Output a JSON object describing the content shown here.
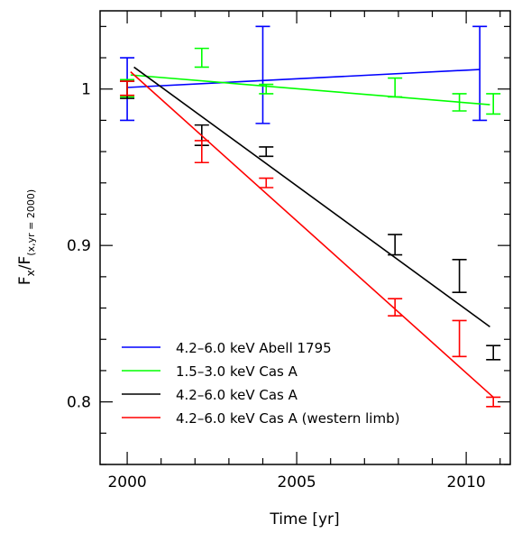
{
  "chart_data": {
    "type": "line",
    "xlabel": "Time [yr]",
    "ylabel_main": "F",
    "ylabel_sub1": "x",
    "ylabel_mid": "/F",
    "ylabel_sub2": "(x,yr = 2000)",
    "xlim": [
      1999.2,
      2011.3
    ],
    "ylim": [
      0.76,
      1.05
    ],
    "x_ticks": [
      2000,
      2005,
      2010
    ],
    "x_tick_labels": [
      "2000",
      "2005",
      "2010"
    ],
    "x_minor_step": 1,
    "y_ticks": [
      0.8,
      0.9,
      1.0
    ],
    "y_tick_labels": [
      "0.8",
      "0.9",
      "1"
    ],
    "y_minor_step": 0.02,
    "grid": false,
    "legend_position": "bottom-left",
    "series": [
      {
        "name": "4.2–6.0 keV Abell 1795",
        "color": "#0000ff",
        "points": [
          {
            "x": 2000.0,
            "y": 1.0,
            "lo": 0.98,
            "hi": 1.02
          },
          {
            "x": 2004.0,
            "y": 1.0,
            "lo": 0.978,
            "hi": 1.04
          },
          {
            "x": 2010.4,
            "y": 1.0,
            "lo": 0.98,
            "hi": 1.04
          }
        ],
        "fit": {
          "x": [
            2000.0,
            2010.4
          ],
          "y": [
            1.001,
            1.0125
          ]
        }
      },
      {
        "name": "1.5–3.0 keV Cas A",
        "color": "#00ff00",
        "points": [
          {
            "x": 2000.0,
            "y": 1.0,
            "lo": 0.995,
            "hi": 1.006
          },
          {
            "x": 2002.2,
            "y": 1.02,
            "lo": 1.014,
            "hi": 1.026
          },
          {
            "x": 2004.1,
            "y": 1.0,
            "lo": 0.997,
            "hi": 1.003
          },
          {
            "x": 2007.9,
            "y": 1.0,
            "lo": 0.995,
            "hi": 1.007
          },
          {
            "x": 2009.8,
            "y": 0.99,
            "lo": 0.986,
            "hi": 0.997
          },
          {
            "x": 2010.8,
            "y": 0.99,
            "lo": 0.984,
            "hi": 0.997
          }
        ],
        "fit": {
          "x": [
            2000.1,
            2010.7
          ],
          "y": [
            1.009,
            0.99
          ]
        }
      },
      {
        "name": "4.2–6.0 keV Cas A",
        "color": "#000000",
        "points": [
          {
            "x": 2000.0,
            "y": 1.0,
            "lo": 0.994,
            "hi": 1.005
          },
          {
            "x": 2002.2,
            "y": 0.97,
            "lo": 0.964,
            "hi": 0.977
          },
          {
            "x": 2004.1,
            "y": 0.96,
            "lo": 0.957,
            "hi": 0.963
          },
          {
            "x": 2007.9,
            "y": 0.9,
            "lo": 0.894,
            "hi": 0.907
          },
          {
            "x": 2009.8,
            "y": 0.88,
            "lo": 0.87,
            "hi": 0.891
          },
          {
            "x": 2010.8,
            "y": 0.83,
            "lo": 0.827,
            "hi": 0.836
          }
        ],
        "fit": {
          "x": [
            2000.2,
            2010.7
          ],
          "y": [
            1.014,
            0.848
          ]
        }
      },
      {
        "name": "4.2–6.0 keV Cas A (western limb)",
        "color": "#ff0000",
        "points": [
          {
            "x": 2000.0,
            "y": 1.0,
            "lo": 0.996,
            "hi": 1.005
          },
          {
            "x": 2002.2,
            "y": 0.96,
            "lo": 0.953,
            "hi": 0.967
          },
          {
            "x": 2004.1,
            "y": 0.94,
            "lo": 0.937,
            "hi": 0.943
          },
          {
            "x": 2007.9,
            "y": 0.86,
            "lo": 0.855,
            "hi": 0.866
          },
          {
            "x": 2009.8,
            "y": 0.84,
            "lo": 0.829,
            "hi": 0.852
          },
          {
            "x": 2010.8,
            "y": 0.8,
            "lo": 0.797,
            "hi": 0.803
          }
        ],
        "fit": {
          "x": [
            2000.1,
            2010.8
          ],
          "y": [
            1.011,
            0.803
          ]
        }
      }
    ]
  }
}
